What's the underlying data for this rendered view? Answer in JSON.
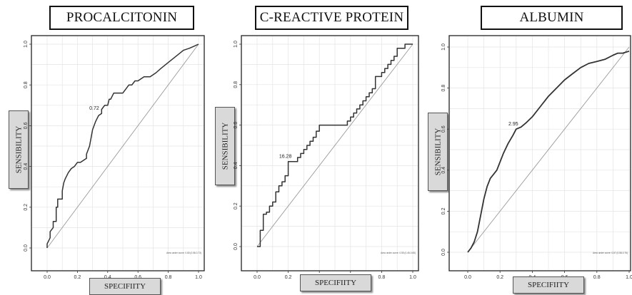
{
  "chart_data": [
    {
      "type": "line",
      "title": "PROCALCITONIN",
      "xlabel": "SPECIFIITY",
      "ylabel": "SENSIBILITY",
      "xlim": [
        0,
        1
      ],
      "ylim": [
        0,
        1
      ],
      "xticks": [
        "0.0",
        "0.2",
        "0.4",
        "0.6",
        "0.8",
        "1.0"
      ],
      "yticks": [
        "0.0",
        "0.2",
        "0.4",
        "0.6",
        "0.8",
        "1.0"
      ],
      "grid": true,
      "cutoff_label": "0.72",
      "cutoff_point": [
        0.33,
        0.66
      ],
      "annotation": "Area under curve: 0.65 (0.58-0.73)",
      "diagonal": true,
      "series": [
        {
          "x": [
            0.0,
            0.0,
            0.02,
            0.02,
            0.04,
            0.04,
            0.06,
            0.06,
            0.07,
            0.07,
            0.1,
            0.1,
            0.11,
            0.12,
            0.14,
            0.16,
            0.18,
            0.2,
            0.22,
            0.24,
            0.26,
            0.26,
            0.28,
            0.29,
            0.3,
            0.31,
            0.32,
            0.34,
            0.36,
            0.36,
            0.38,
            0.4,
            0.41,
            0.42,
            0.44,
            0.46,
            0.5,
            0.52,
            0.54,
            0.56,
            0.58,
            0.6,
            0.62,
            0.64,
            0.66,
            0.68,
            0.7,
            0.72,
            0.75,
            0.8,
            0.85,
            0.9,
            0.94,
            0.97,
            1.0
          ],
          "y": [
            0.0,
            0.02,
            0.05,
            0.08,
            0.1,
            0.13,
            0.13,
            0.2,
            0.2,
            0.24,
            0.24,
            0.28,
            0.32,
            0.34,
            0.37,
            0.39,
            0.4,
            0.42,
            0.42,
            0.43,
            0.44,
            0.46,
            0.5,
            0.54,
            0.58,
            0.6,
            0.62,
            0.65,
            0.66,
            0.68,
            0.7,
            0.7,
            0.73,
            0.73,
            0.76,
            0.76,
            0.76,
            0.78,
            0.8,
            0.8,
            0.82,
            0.82,
            0.83,
            0.84,
            0.84,
            0.84,
            0.85,
            0.86,
            0.88,
            0.91,
            0.94,
            0.97,
            0.98,
            0.99,
            1.0
          ]
        }
      ]
    },
    {
      "type": "line",
      "title": "C-REACTIVE PROTEIN",
      "xlabel": "SPECIFIITY",
      "ylabel": "SENSIBILITY",
      "xlim": [
        0,
        1
      ],
      "ylim": [
        0,
        1
      ],
      "xticks": [
        "0.0",
        "0.2",
        "0.4",
        "0.6",
        "0.8",
        "1.0"
      ],
      "yticks": [
        "0.0",
        "0.2",
        "0.4",
        "0.6",
        "0.8",
        "1.0"
      ],
      "grid": true,
      "cutoff_label": "16.28",
      "cutoff_point": [
        0.2,
        0.42
      ],
      "annotation": "Area under curve: 0.55 (0.45-0.65)",
      "diagonal": true,
      "series": [
        {
          "x": [
            0.0,
            0.02,
            0.02,
            0.04,
            0.04,
            0.06,
            0.06,
            0.08,
            0.08,
            0.1,
            0.1,
            0.12,
            0.12,
            0.14,
            0.14,
            0.16,
            0.16,
            0.18,
            0.18,
            0.2,
            0.2,
            0.26,
            0.26,
            0.28,
            0.28,
            0.3,
            0.3,
            0.32,
            0.32,
            0.34,
            0.34,
            0.36,
            0.36,
            0.38,
            0.38,
            0.4,
            0.4,
            0.58,
            0.58,
            0.6,
            0.6,
            0.62,
            0.62,
            0.64,
            0.64,
            0.66,
            0.66,
            0.68,
            0.68,
            0.7,
            0.7,
            0.72,
            0.72,
            0.74,
            0.74,
            0.76,
            0.76,
            0.8,
            0.8,
            0.82,
            0.82,
            0.84,
            0.84,
            0.86,
            0.86,
            0.88,
            0.88,
            0.9,
            0.9,
            0.95,
            0.95,
            1.0
          ],
          "y": [
            0.0,
            0.0,
            0.08,
            0.08,
            0.16,
            0.16,
            0.17,
            0.17,
            0.2,
            0.2,
            0.22,
            0.22,
            0.27,
            0.27,
            0.3,
            0.3,
            0.32,
            0.32,
            0.35,
            0.35,
            0.42,
            0.42,
            0.44,
            0.44,
            0.46,
            0.46,
            0.48,
            0.48,
            0.5,
            0.5,
            0.52,
            0.52,
            0.54,
            0.54,
            0.57,
            0.57,
            0.6,
            0.6,
            0.62,
            0.62,
            0.64,
            0.64,
            0.66,
            0.66,
            0.68,
            0.68,
            0.7,
            0.7,
            0.72,
            0.72,
            0.74,
            0.74,
            0.76,
            0.76,
            0.78,
            0.78,
            0.84,
            0.84,
            0.86,
            0.86,
            0.88,
            0.88,
            0.9,
            0.9,
            0.92,
            0.92,
            0.94,
            0.94,
            0.98,
            0.98,
            1.0,
            1.0
          ]
        }
      ]
    },
    {
      "type": "line",
      "title": "ALBUMIN",
      "xlabel": "SPECIFIITY",
      "ylabel": "SENSIBILITY",
      "xlim": [
        0,
        1
      ],
      "ylim": [
        0,
        1
      ],
      "xticks": [
        "0.0",
        "0.2",
        "0.4",
        "0.6",
        "0.8",
        "1.0"
      ],
      "yticks": [
        "0.0",
        "0.2",
        "0.4",
        "0.6",
        "0.8",
        "1.0"
      ],
      "grid": true,
      "cutoff_label": "2.95",
      "cutoff_point": [
        0.3,
        0.6
      ],
      "annotation": "Area under curve: 0.67 (0.58-0.76)",
      "diagonal": true,
      "series": [
        {
          "x": [
            0.0,
            0.02,
            0.04,
            0.06,
            0.08,
            0.1,
            0.12,
            0.14,
            0.16,
            0.18,
            0.2,
            0.22,
            0.25,
            0.28,
            0.3,
            0.33,
            0.36,
            0.4,
            0.45,
            0.5,
            0.55,
            0.6,
            0.65,
            0.7,
            0.75,
            0.8,
            0.85,
            0.9,
            0.93,
            0.96,
            1.0
          ],
          "y": [
            0.0,
            0.02,
            0.05,
            0.1,
            0.18,
            0.26,
            0.32,
            0.36,
            0.38,
            0.4,
            0.44,
            0.48,
            0.53,
            0.57,
            0.6,
            0.61,
            0.63,
            0.66,
            0.71,
            0.76,
            0.8,
            0.84,
            0.87,
            0.9,
            0.92,
            0.93,
            0.94,
            0.96,
            0.97,
            0.97,
            0.98
          ]
        }
      ]
    }
  ]
}
